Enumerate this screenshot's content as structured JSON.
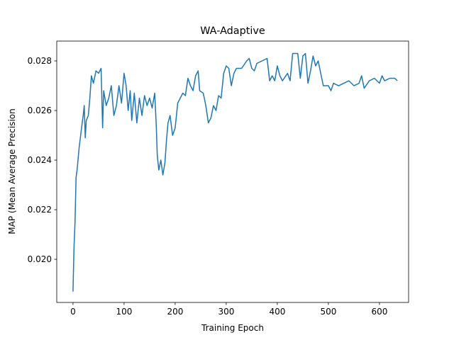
{
  "chart_data": {
    "type": "line",
    "title": "WA-Adaptive",
    "x_label": "Training Epoch",
    "y_label": "MAP (Mean Average Precision",
    "xlim": [
      -31.8,
      657
    ],
    "ylim": [
      0.01826,
      0.0288
    ],
    "xticks": [
      0,
      100,
      200,
      300,
      400,
      500,
      600
    ],
    "yticks": [
      {
        "value": 0.02,
        "label": "0.020"
      },
      0.022,
      0.024,
      0.026,
      0.028
    ],
    "series": [
      {
        "color": "#1f77b4",
        "x": [
          0,
          2,
          4,
          6,
          8,
          12,
          15,
          18,
          20,
          22,
          24,
          26,
          30,
          33,
          36,
          40,
          45,
          50,
          55,
          58,
          60,
          65,
          70,
          75,
          80,
          85,
          90,
          95,
          100,
          104,
          108,
          112,
          115,
          120,
          125,
          130,
          135,
          140,
          145,
          150,
          155,
          160,
          163,
          165,
          168,
          172,
          176,
          180,
          183,
          186,
          190,
          195,
          200,
          205,
          210,
          215,
          220,
          225,
          230,
          235,
          240,
          245,
          248,
          255,
          260,
          265,
          270,
          275,
          280,
          285,
          290,
          295,
          300,
          305,
          310,
          315,
          320,
          330,
          340,
          345,
          350,
          355,
          360,
          370,
          380,
          385,
          390,
          395,
          400,
          405,
          410,
          420,
          425,
          430,
          440,
          445,
          450,
          455,
          460,
          465,
          470,
          475,
          480,
          485,
          490,
          500,
          505,
          510,
          520,
          530,
          540,
          550,
          560,
          565,
          570,
          580,
          590,
          600,
          605,
          610,
          620,
          630,
          635
        ],
        "values": [
          0.0187,
          0.0205,
          0.0215,
          0.0233,
          0.0236,
          0.0245,
          0.025,
          0.0255,
          0.0258,
          0.0262,
          0.0249,
          0.0256,
          0.0258,
          0.0265,
          0.0274,
          0.0271,
          0.0276,
          0.0275,
          0.0277,
          0.0253,
          0.0268,
          0.0262,
          0.0265,
          0.027,
          0.0258,
          0.0262,
          0.027,
          0.0263,
          0.0275,
          0.027,
          0.026,
          0.0268,
          0.0256,
          0.0267,
          0.0255,
          0.0265,
          0.0258,
          0.0266,
          0.0262,
          0.0265,
          0.0261,
          0.0267,
          0.0254,
          0.0242,
          0.0236,
          0.024,
          0.0234,
          0.0239,
          0.0248,
          0.0255,
          0.0258,
          0.025,
          0.0253,
          0.0263,
          0.0265,
          0.0267,
          0.0266,
          0.0273,
          0.027,
          0.0268,
          0.0274,
          0.0276,
          0.0268,
          0.0267,
          0.0262,
          0.0255,
          0.0257,
          0.0262,
          0.026,
          0.0266,
          0.0265,
          0.0275,
          0.0278,
          0.0277,
          0.027,
          0.0275,
          0.0277,
          0.0277,
          0.028,
          0.0281,
          0.0277,
          0.0276,
          0.0279,
          0.028,
          0.0281,
          0.0272,
          0.0274,
          0.0272,
          0.0278,
          0.0274,
          0.0272,
          0.0275,
          0.0272,
          0.0283,
          0.0283,
          0.0273,
          0.0282,
          0.0283,
          0.0271,
          0.0276,
          0.0282,
          0.0278,
          0.028,
          0.0275,
          0.027,
          0.027,
          0.0268,
          0.0271,
          0.027,
          0.0271,
          0.0272,
          0.027,
          0.0271,
          0.0274,
          0.0269,
          0.0272,
          0.0273,
          0.0271,
          0.0274,
          0.0272,
          0.0273,
          0.0273,
          0.0272
        ]
      }
    ]
  }
}
